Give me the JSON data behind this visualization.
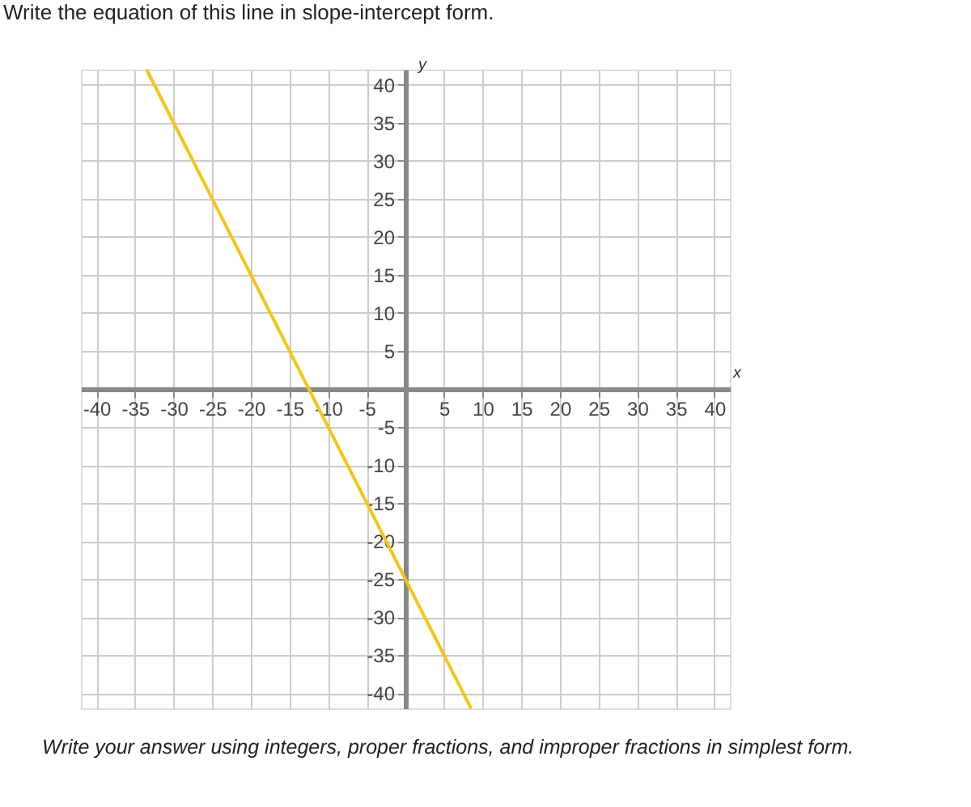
{
  "chart_data": {
    "type": "line",
    "title": "Write the equation of this line in slope-intercept form.",
    "xlabel": "x",
    "ylabel": "y",
    "x": [
      -33.5,
      8.5
    ],
    "series": [
      {
        "color": "#f5c518",
        "values": [
          42,
          -42
        ]
      }
    ],
    "xlim": [
      -42,
      42
    ],
    "ylim": [
      -42,
      42
    ],
    "xticks": [
      -40,
      -35,
      -30,
      -25,
      -20,
      -15,
      -10,
      -5,
      {
        "value": 0,
        "label": null
      },
      5,
      10,
      15,
      20,
      25,
      30,
      35,
      40
    ],
    "yticks": [
      -40,
      -35,
      -30,
      -25,
      -20,
      -15,
      -10,
      -5,
      {
        "value": 0,
        "label": null
      },
      5,
      10,
      15,
      20,
      25,
      30,
      35,
      40
    ],
    "grid": true,
    "marker": "none",
    "line_style": "solid",
    "annotations": [
      "Write your answer using integers, proper fractions, and improper fractions in simplest form."
    ]
  }
}
